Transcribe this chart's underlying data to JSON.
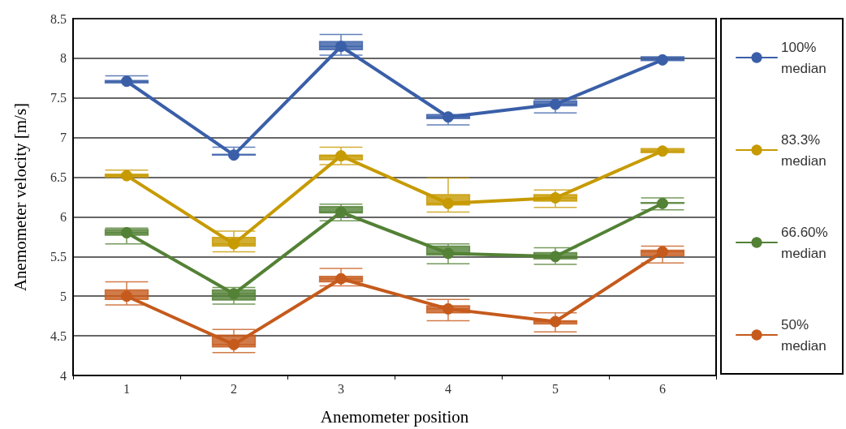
{
  "chart_data": {
    "type": "box",
    "xlabel": "Anemometer position",
    "ylabel": "Anemometer velocity [m/s]",
    "categories": [
      "1",
      "2",
      "3",
      "4",
      "5",
      "6"
    ],
    "ylim": [
      4,
      8.5
    ],
    "yticks": [
      4,
      4.5,
      5,
      5.5,
      6,
      6.5,
      7,
      7.5,
      8,
      8.5
    ],
    "grid": "y",
    "legend": "right",
    "marker": "circle",
    "series": [
      {
        "color": "#3a5fa8",
        "boxes": [
          {
            "low": 7.69,
            "q1": 7.69,
            "median": 7.71,
            "q3": 7.72,
            "high": 7.78
          },
          {
            "low": 6.78,
            "q1": 6.78,
            "median": 6.78,
            "q3": 6.79,
            "high": 6.88
          },
          {
            "low": 8.04,
            "q1": 8.11,
            "median": 8.15,
            "q3": 8.21,
            "high": 8.3
          },
          {
            "low": 7.16,
            "q1": 7.24,
            "median": 7.26,
            "q3": 7.29,
            "high": 7.29
          },
          {
            "low": 7.31,
            "q1": 7.4,
            "median": 7.42,
            "q3": 7.46,
            "high": 7.48
          },
          {
            "low": 7.97,
            "q1": 7.97,
            "median": 7.98,
            "q3": 8.02,
            "high": 8.02
          }
        ]
      },
      {
        "color": "#c79a00",
        "boxes": [
          {
            "low": 6.5,
            "q1": 6.5,
            "median": 6.52,
            "q3": 6.54,
            "high": 6.59
          },
          {
            "low": 5.56,
            "q1": 5.63,
            "median": 5.66,
            "q3": 5.74,
            "high": 5.82
          },
          {
            "low": 6.66,
            "q1": 6.72,
            "median": 6.77,
            "q3": 6.78,
            "high": 6.88
          },
          {
            "low": 6.06,
            "q1": 6.15,
            "median": 6.17,
            "q3": 6.28,
            "high": 6.49
          },
          {
            "low": 6.12,
            "q1": 6.2,
            "median": 6.24,
            "q3": 6.28,
            "high": 6.34
          },
          {
            "low": 6.81,
            "q1": 6.81,
            "median": 6.83,
            "q3": 6.86,
            "high": 6.86
          }
        ]
      },
      {
        "color": "#538135",
        "boxes": [
          {
            "low": 5.66,
            "q1": 5.77,
            "median": 5.8,
            "q3": 5.84,
            "high": 5.86
          },
          {
            "low": 4.9,
            "q1": 4.95,
            "median": 5.03,
            "q3": 5.08,
            "high": 5.11
          },
          {
            "low": 5.95,
            "q1": 6.05,
            "median": 6.06,
            "q3": 6.13,
            "high": 6.16
          },
          {
            "low": 5.41,
            "q1": 5.52,
            "median": 5.54,
            "q3": 5.63,
            "high": 5.66
          },
          {
            "low": 5.4,
            "q1": 5.47,
            "median": 5.5,
            "q3": 5.55,
            "high": 5.61
          },
          {
            "low": 6.09,
            "q1": 6.17,
            "median": 6.17,
            "q3": 6.18,
            "high": 6.24
          }
        ]
      },
      {
        "color": "#c55a1c",
        "boxes": [
          {
            "low": 4.89,
            "q1": 4.96,
            "median": 5.0,
            "q3": 5.08,
            "high": 5.18
          },
          {
            "low": 4.29,
            "q1": 4.36,
            "median": 4.39,
            "q3": 4.51,
            "high": 4.58
          },
          {
            "low": 5.13,
            "q1": 5.18,
            "median": 5.22,
            "q3": 5.25,
            "high": 5.35
          },
          {
            "low": 4.69,
            "q1": 4.79,
            "median": 4.84,
            "q3": 4.88,
            "high": 4.96
          },
          {
            "low": 4.55,
            "q1": 4.65,
            "median": 4.68,
            "q3": 4.69,
            "high": 4.79
          },
          {
            "low": 5.42,
            "q1": 5.51,
            "median": 5.56,
            "q3": 5.58,
            "high": 5.63
          }
        ]
      },
      {
        "type": "line",
        "name": "100% median",
        "color": "#3a5fa8",
        "values": [
          7.71,
          6.78,
          8.15,
          7.26,
          7.42,
          7.98
        ]
      },
      {
        "type": "line",
        "name": "83.3% median",
        "color": "#c79a00",
        "values": [
          6.52,
          5.66,
          6.77,
          6.17,
          6.24,
          6.83
        ]
      },
      {
        "type": "line",
        "name": "66.60% median",
        "color": "#538135",
        "values": [
          5.8,
          5.03,
          6.06,
          5.54,
          5.5,
          6.17
        ]
      },
      {
        "type": "line",
        "name": "50% median",
        "color": "#c55a1c",
        "values": [
          5.0,
          4.39,
          5.22,
          4.84,
          4.68,
          5.56
        ]
      }
    ]
  }
}
